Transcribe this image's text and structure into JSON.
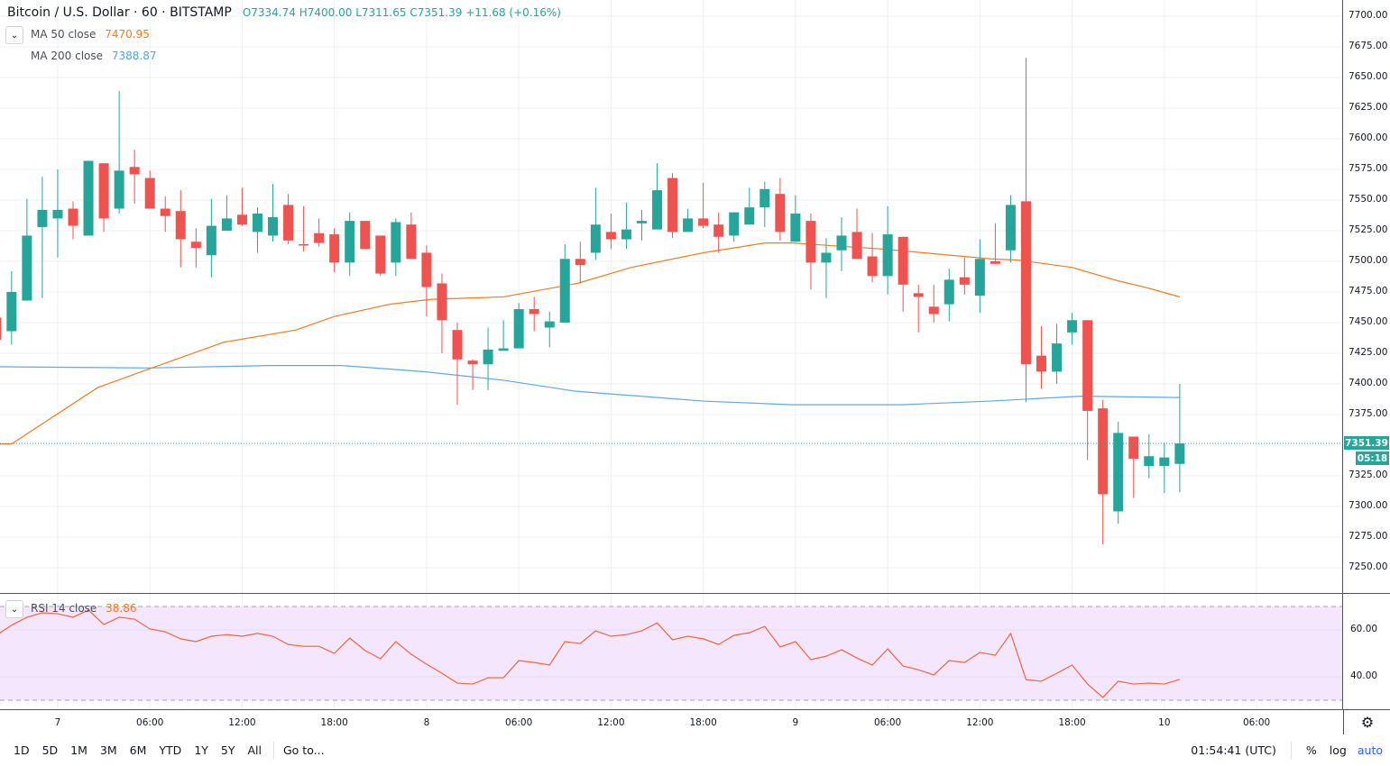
{
  "header": {
    "symbol": "Bitcoin / U.S. Dollar · 60 · BITSTAMP",
    "open": "O7334.74",
    "high": "H7400.00",
    "low": "L7311.65",
    "close": "C7351.39",
    "change": "+11.68 (+0.16%)"
  },
  "indicators": {
    "ma50_label": "MA 50 close",
    "ma50_value": "7470.95",
    "ma200_label": "MA 200 close",
    "ma200_value": "7388.87",
    "rsi_label": "RSI 14 close",
    "rsi_value": "38.86"
  },
  "price_tag": {
    "price": "7351.39",
    "countdown": "05:18"
  },
  "bottom_bar": {
    "timeframes": [
      "1D",
      "5D",
      "1M",
      "3M",
      "6M",
      "YTD",
      "1Y",
      "5Y",
      "All"
    ],
    "goto": "Go to...",
    "clock": "01:54:41 (UTC)",
    "percent": "%",
    "log": "log",
    "auto": "auto"
  },
  "colors": {
    "up": "#26a69a",
    "down": "#ef5350",
    "ma50": "#f57c1f",
    "ma200": "#5ea9e6",
    "rsi": "#f0673f",
    "rsi_band": "#f3e6fd"
  },
  "chart_data": {
    "type": "candlestick",
    "title": "Bitcoin / U.S. Dollar · 60 · BITSTAMP",
    "interval_hours": 1,
    "price_ticks": [
      "7700.00",
      "7675.00",
      "7650.00",
      "7625.00",
      "7600.00",
      "7575.00",
      "7550.00",
      "7525.00",
      "7500.00",
      "7475.00",
      "7450.00",
      "7425.00",
      "7400.00",
      "7375.00",
      "7350.00",
      "7325.00",
      "7300.00",
      "7275.00",
      "7250.00"
    ],
    "ylim": [
      7229,
      7713
    ],
    "time_ticks": [
      "7",
      "06:00",
      "12:00",
      "18:00",
      "8",
      "06:00",
      "12:00",
      "18:00",
      "9",
      "06:00",
      "12:00",
      "18:00",
      "10",
      "06:00"
    ],
    "candles_ohlc": [
      [
        7454,
        7460,
        7432,
        7436
      ],
      [
        7443,
        7492,
        7432,
        7475
      ],
      [
        7468,
        7551,
        7468,
        7521
      ],
      [
        7528,
        7569,
        7470,
        7542
      ],
      [
        7535,
        7575,
        7503,
        7542
      ],
      [
        7543,
        7549,
        7518,
        7529
      ],
      [
        7521,
        7582,
        7521,
        7582
      ],
      [
        7580,
        7580,
        7524,
        7535
      ],
      [
        7543,
        7639,
        7539,
        7574
      ],
      [
        7577,
        7591,
        7547,
        7571
      ],
      [
        7568,
        7574,
        7543,
        7543
      ],
      [
        7543,
        7553,
        7524,
        7537
      ],
      [
        7541,
        7558,
        7495,
        7518
      ],
      [
        7516,
        7527,
        7495,
        7511
      ],
      [
        7505,
        7551,
        7487,
        7529
      ],
      [
        7525,
        7554,
        7525,
        7535
      ],
      [
        7538,
        7560,
        7529,
        7530
      ],
      [
        7524,
        7544,
        7507,
        7539
      ],
      [
        7521,
        7563,
        7516,
        7536
      ],
      [
        7546,
        7555,
        7514,
        7517
      ],
      [
        7514,
        7545,
        7508,
        7513
      ],
      [
        7523,
        7535,
        7512,
        7515
      ],
      [
        7522,
        7527,
        7491,
        7499
      ],
      [
        7499,
        7540,
        7488,
        7533
      ],
      [
        7533,
        7533,
        7510,
        7510
      ],
      [
        7521,
        7521,
        7488,
        7490
      ],
      [
        7499,
        7535,
        7488,
        7532
      ],
      [
        7530,
        7540,
        7502,
        7502
      ],
      [
        7507,
        7513,
        7455,
        7479
      ],
      [
        7482,
        7490,
        7425,
        7452
      ],
      [
        7444,
        7450,
        7383,
        7420
      ],
      [
        7419,
        7420,
        7395,
        7416
      ],
      [
        7416,
        7446,
        7395,
        7428
      ],
      [
        7427,
        7452,
        7427,
        7429
      ],
      [
        7429,
        7466,
        7429,
        7461
      ],
      [
        7461,
        7471,
        7443,
        7457
      ],
      [
        7446,
        7459,
        7430,
        7451
      ],
      [
        7450,
        7514,
        7450,
        7502
      ],
      [
        7502,
        7516,
        7482,
        7497
      ],
      [
        7507,
        7560,
        7501,
        7530
      ],
      [
        7524,
        7539,
        7510,
        7518
      ],
      [
        7518,
        7548,
        7510,
        7526
      ],
      [
        7531,
        7542,
        7517,
        7533
      ],
      [
        7526,
        7580,
        7526,
        7558
      ],
      [
        7568,
        7572,
        7519,
        7524
      ],
      [
        7524,
        7543,
        7524,
        7535
      ],
      [
        7535,
        7564,
        7527,
        7529
      ],
      [
        7530,
        7540,
        7507,
        7520
      ],
      [
        7521,
        7540,
        7516,
        7540
      ],
      [
        7530,
        7560,
        7530,
        7544
      ],
      [
        7544,
        7565,
        7528,
        7559
      ],
      [
        7555,
        7568,
        7517,
        7524
      ],
      [
        7516,
        7554,
        7516,
        7539
      ],
      [
        7533,
        7539,
        7477,
        7499
      ],
      [
        7499,
        7519,
        7470,
        7507
      ],
      [
        7509,
        7536,
        7492,
        7521
      ],
      [
        7524,
        7543,
        7502,
        7502
      ],
      [
        7504,
        7523,
        7483,
        7488
      ],
      [
        7488,
        7545,
        7473,
        7522
      ],
      [
        7520,
        7520,
        7459,
        7481
      ],
      [
        7474,
        7481,
        7442,
        7471
      ],
      [
        7463,
        7481,
        7450,
        7457
      ],
      [
        7465,
        7494,
        7451,
        7485
      ],
      [
        7487,
        7503,
        7473,
        7481
      ],
      [
        7472,
        7518,
        7458,
        7502
      ],
      [
        7500,
        7531,
        7498,
        7498
      ],
      [
        7509,
        7554,
        7499,
        7546
      ],
      [
        7549,
        7666,
        7385,
        7416
      ],
      [
        7423,
        7447,
        7396,
        7410
      ],
      [
        7410,
        7449,
        7400,
        7433
      ],
      [
        7442,
        7458,
        7432,
        7452
      ],
      [
        7452,
        7452,
        7338,
        7378
      ],
      [
        7380,
        7387,
        7269,
        7310
      ],
      [
        7296,
        7369,
        7286,
        7360
      ],
      [
        7357,
        7357,
        7307,
        7339
      ],
      [
        7333,
        7359,
        7323,
        7341
      ],
      [
        7333,
        7352,
        7311,
        7340
      ],
      [
        7334.74,
        7400,
        7311.65,
        7351.39
      ]
    ],
    "ma50": [
      [
        0,
        7351
      ],
      [
        1,
        7351
      ],
      [
        6.6,
        7397
      ],
      [
        9.9,
        7412
      ],
      [
        14.8,
        7434
      ],
      [
        19.5,
        7444
      ],
      [
        22,
        7455
      ],
      [
        25.6,
        7465
      ],
      [
        28.3,
        7469
      ],
      [
        33,
        7471
      ],
      [
        37.8,
        7482
      ],
      [
        41.3,
        7495
      ],
      [
        46,
        7507
      ],
      [
        50,
        7515
      ],
      [
        51.8,
        7515
      ],
      [
        55.3,
        7512
      ],
      [
        57.7,
        7510
      ],
      [
        61.2,
        7506
      ],
      [
        64.7,
        7502
      ],
      [
        66.5,
        7501
      ],
      [
        70,
        7495
      ],
      [
        73,
        7484
      ],
      [
        74.7,
        7479
      ],
      [
        77,
        7470.95
      ]
    ],
    "ma200": [
      [
        0,
        7414
      ],
      [
        9.9,
        7413
      ],
      [
        17.8,
        7415
      ],
      [
        22.5,
        7415
      ],
      [
        27.8,
        7410
      ],
      [
        33,
        7403
      ],
      [
        37.7,
        7394
      ],
      [
        46,
        7386
      ],
      [
        51.8,
        7383
      ],
      [
        58.9,
        7383
      ],
      [
        64.7,
        7386
      ],
      [
        70.6,
        7390
      ],
      [
        77,
        7388.87
      ]
    ],
    "rsi": {
      "ticks": [
        "60.00",
        "40.00"
      ],
      "upper_band": 70,
      "lower_band": 30,
      "values": [
        57.7,
        62,
        65.4,
        67.3,
        66.9,
        65.4,
        68.5,
        62.3,
        65.4,
        64.6,
        60.4,
        59.2,
        56.2,
        55,
        57.3,
        58,
        57.3,
        58.5,
        57.3,
        53.8,
        53,
        53,
        50,
        56.5,
        51.2,
        47.7,
        55,
        49.6,
        45.4,
        41.5,
        37.3,
        36.9,
        39.6,
        39.6,
        46.9,
        46.1,
        45,
        55,
        54.2,
        59.6,
        57.3,
        58,
        59.6,
        63,
        55.8,
        57.3,
        56.2,
        53.8,
        57.7,
        58.8,
        61.5,
        52.7,
        55,
        47.3,
        48.8,
        51.5,
        48,
        45,
        51.9,
        44.6,
        43,
        40.8,
        46.9,
        46.1,
        50.4,
        49.2,
        58.5,
        38.8,
        38.1,
        41.5,
        45,
        36.9,
        31.2,
        38.1,
        36.9,
        37.3,
        36.9,
        38.86
      ]
    }
  }
}
